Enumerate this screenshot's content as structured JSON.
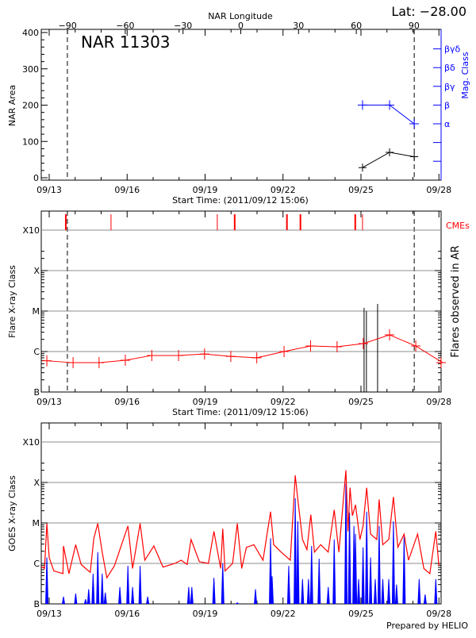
{
  "chart_data": [
    {
      "type": "line",
      "title": "NAR 11303",
      "annotation": "Lat: −28.00",
      "xlabel": "Start Time: (2011/09/12 15:06)",
      "ylabel": "NAR Area",
      "y2label": "Mag. Class",
      "top_axis_label": "NAR Longitude",
      "top_ticks": [
        "-90",
        "-60",
        "-30",
        "0",
        "30",
        "60",
        "90"
      ],
      "xticks": [
        "09/13",
        "09/16",
        "09/19",
        "09/22",
        "09/25",
        "09/28"
      ],
      "yticks": [
        "0",
        "100",
        "200",
        "300",
        "400"
      ],
      "ylim": [
        -5,
        410
      ],
      "y2ticks": [
        "α",
        "β",
        "βγ",
        "βδ",
        "βγδ"
      ],
      "dashed_lines_day": [
        13.7,
        27.05
      ],
      "series": [
        {
          "color": "#000000",
          "x": [
            25.06,
            26.1,
            27.05
          ],
          "values": [
            28,
            70,
            58
          ]
        },
        {
          "color": "#0000ff",
          "axis": "right",
          "x": [
            25.06,
            26.1,
            27.05
          ],
          "values": [
            "β",
            "β",
            "α"
          ]
        }
      ]
    },
    {
      "type": "line",
      "xlabel": "Start Time: (2011/09/12 15:06)",
      "ylabel": "Flare X-ray Class",
      "y2label": "Flares observed in AR",
      "cme_label": "CMEs",
      "yticks": [
        "B",
        "C",
        "M",
        "X",
        "X10"
      ],
      "xticks": [
        "09/13",
        "09/16",
        "09/19",
        "09/22",
        "09/25",
        "09/28"
      ],
      "yscale": "log",
      "ylim": [
        1e-07,
        0.00032
      ],
      "grid": true,
      "dashed_lines_day": [
        13.7,
        27.05
      ],
      "cme_days": [
        13.64,
        15.38,
        19.47,
        20.14,
        22.15,
        22.67,
        24.78,
        25.06
      ],
      "flares": {
        "days": [
          25.12,
          25.21,
          25.64
        ],
        "flux": [
          1.2e-05,
          1e-05,
          1.5e-05
        ]
      },
      "series": [
        {
          "color": "#ff0000",
          "x": [
            12.91,
            13.92,
            14.92,
            15.93,
            16.95,
            17.98,
            18.98,
            19.99,
            20.99,
            22.04,
            23.06,
            24.08,
            25.09,
            26.1,
            27.11,
            28.15
          ],
          "values": [
            5.9e-07,
            5.3e-07,
            5.3e-07,
            6.1e-07,
            8e-07,
            8e-07,
            8.7e-07,
            7.6e-07,
            7e-07,
            1e-06,
            1.37e-06,
            1.31e-06,
            1.57e-06,
            2.58e-06,
            1.37e-06,
            5.3e-07
          ]
        }
      ]
    },
    {
      "type": "line",
      "ylabel": "GOES X-ray Class",
      "yticks": [
        "B",
        "C",
        "M",
        "X",
        "X10"
      ],
      "xticks": [
        "09/13",
        "09/16",
        "09/19",
        "09/22",
        "09/25",
        "09/28"
      ],
      "yscale": "log",
      "ylim": [
        1e-07,
        0.00032
      ],
      "grid": true,
      "footer": "Prepared by HELIO",
      "series": [
        {
          "color": "#ff0000",
          "x": [
            12.65,
            12.82,
            12.91,
            13.0,
            13.18,
            13.53,
            13.55,
            13.76,
            14.02,
            14.23,
            14.58,
            14.72,
            14.87,
            15.04,
            15.22,
            15.51,
            16.03,
            16.21,
            16.5,
            16.68,
            17.03,
            17.38,
            17.84,
            18.08,
            18.31,
            18.46,
            18.78,
            19.13,
            19.34,
            19.6,
            19.68,
            19.77,
            20.06,
            20.24,
            20.41,
            20.59,
            20.88,
            21.23,
            21.52,
            21.64,
            21.93,
            22.28,
            22.47,
            22.57,
            22.75,
            22.92,
            23.07,
            23.21,
            23.45,
            23.74,
            23.97,
            24.15,
            24.42,
            24.5,
            24.58,
            24.67,
            24.79,
            24.96,
            25.08,
            25.22,
            25.37,
            25.61,
            25.7,
            25.84,
            26.07,
            26.25,
            26.42,
            26.66,
            26.83,
            27.18,
            27.42,
            27.65,
            27.88,
            28.0
          ],
          "values": [
            8.7e-07,
            7.5e-07,
            9.7e-06,
            1.4e-06,
            6.5e-07,
            5.6e-07,
            2.7e-06,
            5.6e-07,
            2.9e-06,
            9.4e-07,
            6e-07,
            4.2e-06,
            9.7e-06,
            1.9e-06,
            4.4e-07,
            8.7e-07,
            8.4e-06,
            7.5e-07,
            9.7e-06,
            1.2e-06,
            2.7e-06,
            8.1e-07,
            1e-06,
            1.2e-06,
            9.4e-07,
            3.9e-06,
            1.1e-06,
            1e-06,
            6.2e-06,
            7.5e-07,
            7.2e-06,
            6.5e-07,
            1e-06,
            9.7e-06,
            7.5e-07,
            2.5e-06,
            2.9e-06,
            1.2e-06,
            1.9e-05,
            2.9e-06,
            1.9e-06,
            1.2e-06,
            0.00015,
            3.8e-05,
            3.9e-06,
            2.2e-06,
            1.6e-05,
            1.9e-06,
            2.9e-06,
            1.9e-06,
            2.1e-05,
            1.9e-06,
            0.0002,
            6.2e-06,
            7.4e-05,
            1.5e-05,
            2.8e-05,
            3.9e-06,
            8.4e-06,
            7.4e-05,
            5.3e-06,
            3.9e-06,
            3.8e-05,
            2.9e-06,
            3.9e-06,
            4.4e-05,
            2.5e-06,
            5.3e-06,
            1.2e-06,
            5.3e-06,
            7.5e-07,
            5.6e-07,
            6.2e-06,
            8.7e-07
          ]
        },
        {
          "color": "#0000ff",
          "x": [
            12.91,
            13.55,
            14.02,
            14.4,
            14.52,
            14.69,
            14.87,
            15.04,
            15.16,
            15.72,
            16.03,
            16.21,
            16.5,
            16.79,
            18.37,
            18.49,
            19.34,
            19.68,
            20.24,
            20.94,
            21.52,
            21.58,
            22.22,
            22.47,
            22.57,
            22.75,
            22.98,
            23.1,
            23.39,
            23.74,
            23.97,
            24.42,
            24.56,
            24.73,
            24.79,
            24.91,
            25.08,
            25.22,
            25.37,
            25.55,
            25.7,
            25.84,
            26.07,
            26.25,
            26.37,
            26.66,
            27.24,
            27.47,
            27.88
          ],
          "values": [
            1.4e-06,
            1.5e-07,
            1.8e-07,
            1.3e-07,
            2.3e-07,
            5.6e-07,
            1.9e-06,
            5.6e-07,
            1.9e-07,
            2.6e-07,
            8.7e-07,
            2.6e-07,
            8.7e-07,
            1.5e-07,
            2.6e-07,
            2.6e-07,
            4.4e-07,
            1e-06,
            1.06e-07,
            2.3e-07,
            4.2e-06,
            4.8e-07,
            8.7e-07,
            4.1e-05,
            1.1e-05,
            4.1e-07,
            4.1e-07,
            2.7e-06,
            1.3e-06,
            2.6e-07,
            3.9e-06,
            9.3e-05,
            1.8e-05,
            8.4e-06,
            5.3e-06,
            4.1e-07,
            2.5e-06,
            1.9e-05,
            1.4e-06,
            4.1e-07,
            8.4e-06,
            4.1e-07,
            4.1e-07,
            1.1e-05,
            3e-07,
            4.6e-06,
            4.1e-07,
            1.7e-07,
            4.1e-07
          ]
        }
      ]
    }
  ]
}
